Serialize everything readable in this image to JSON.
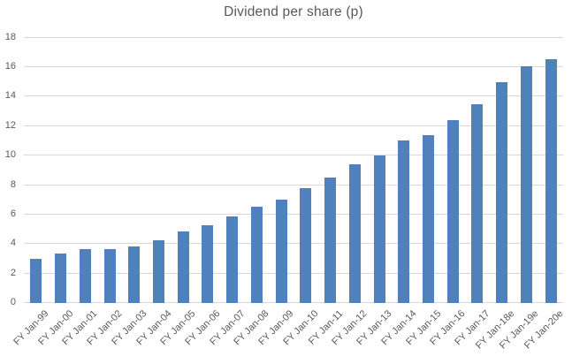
{
  "chart_data": {
    "type": "bar",
    "title": "Dividend per share (p)",
    "categories": [
      "FY Jan-99",
      "FY Jan-00",
      "FY Jan-01",
      "FY Jan-02",
      "FY Jan-03",
      "FY Jan-04",
      "FY Jan-05",
      "FY Jan-06",
      "FY Jan-07",
      "FY Jan-08",
      "FY Jan-09",
      "FY Jan-10",
      "FY Jan-11",
      "FY Jan-12",
      "FY Jan-13",
      "FY Jan-14",
      "FY Jan-15",
      "FY Jan-16",
      "FY Jan-17",
      "FY Jan-18e",
      "FY Jan-19e",
      "FY Jan-20e"
    ],
    "values": [
      3.0,
      3.3,
      3.6,
      3.6,
      3.8,
      4.25,
      4.8,
      5.25,
      5.85,
      6.5,
      7.0,
      7.75,
      8.5,
      9.35,
      10.0,
      11.0,
      11.35,
      12.4,
      13.45,
      14.95,
      16.0,
      16.5
    ],
    "xlabel": "",
    "ylabel": "",
    "ylim": [
      0,
      18
    ],
    "ytick_step": 2,
    "ytick_labels": [
      "0",
      "2",
      "4",
      "6",
      "8",
      "10",
      "12",
      "14",
      "16",
      "18"
    ],
    "grid": true,
    "legend_position": "none",
    "colors": {
      "bar": "#4F81BD",
      "gridline": "#D9D9D9",
      "axis_line": "#D9D9D9",
      "text": "#595959",
      "background": "#FFFFFF"
    }
  }
}
